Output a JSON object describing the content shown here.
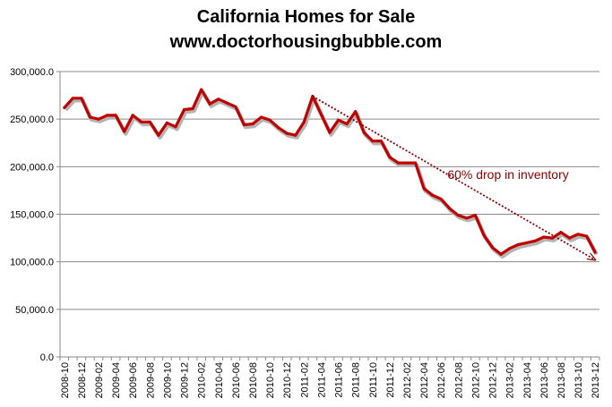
{
  "chart_data": {
    "type": "line",
    "title": "California Homes for Sale",
    "subtitle": "www.doctorhousingbubble.com",
    "xlabel": "",
    "ylabel": "",
    "ylim": [
      0,
      300000
    ],
    "grid": true,
    "yticks": [
      "0.0",
      "50,000.0",
      "100,000.0",
      "150,000.0",
      "200,000.0",
      "250,000.0",
      "300,000.0"
    ],
    "categories": [
      "2008-10",
      "2008-11",
      "2008-12",
      "2009-01",
      "2009-02",
      "2009-03",
      "2009-04",
      "2009-05",
      "2009-06",
      "2009-07",
      "2009-08",
      "2009-09",
      "2009-10",
      "2009-11",
      "2009-12",
      "2010-01",
      "2010-02",
      "2010-03",
      "2010-04",
      "2010-05",
      "2010-06",
      "2010-07",
      "2010-08",
      "2010-09",
      "2010-10",
      "2010-11",
      "2010-12",
      "2011-01",
      "2011-02",
      "2011-03",
      "2011-04",
      "2011-05",
      "2011-06",
      "2011-07",
      "2011-08",
      "2011-09",
      "2011-10",
      "2011-11",
      "2011-12",
      "2012-01",
      "2012-02",
      "2012-03",
      "2012-04",
      "2012-05",
      "2012-06",
      "2012-07",
      "2012-08",
      "2012-09",
      "2012-10",
      "2012-11",
      "2012-12",
      "2013-01",
      "2013-02",
      "2013-03",
      "2013-04",
      "2013-05",
      "2013-06",
      "2013-07",
      "2013-08",
      "2013-09",
      "2013-10",
      "2013-11",
      "2013-12"
    ],
    "xtick_labels": [
      "2008-10",
      "2008-12",
      "2009-02",
      "2009-04",
      "2009-06",
      "2009-08",
      "2009-10",
      "2009-12",
      "2010-02",
      "2010-04",
      "2010-06",
      "2010-08",
      "2010-10",
      "2010-12",
      "2011-02",
      "2011-04",
      "2011-06",
      "2011-08",
      "2011-10",
      "2011-12",
      "2012-02",
      "2012-04",
      "2012-06",
      "2012-08",
      "2012-10",
      "2012-12",
      "2013-02",
      "2013-04",
      "2013-06",
      "2013-08",
      "2013-10",
      "2013-12"
    ],
    "series": [
      {
        "color": "#c00000",
        "values": [
          262000,
          272000,
          272000,
          252000,
          250000,
          254000,
          254000,
          237000,
          254000,
          247000,
          247000,
          233000,
          246000,
          242000,
          260000,
          261000,
          281000,
          266000,
          271000,
          267000,
          263000,
          244000,
          245000,
          252000,
          249000,
          241000,
          235000,
          233000,
          247000,
          274000,
          255000,
          236000,
          249000,
          245000,
          258000,
          236000,
          227000,
          227000,
          210000,
          204000,
          204000,
          204000,
          177000,
          170000,
          166000,
          156000,
          149000,
          146000,
          149000,
          128000,
          115000,
          108000,
          114000,
          118000,
          120000,
          122000,
          126000,
          125000,
          131000,
          125000,
          129000,
          127000,
          110000
        ]
      }
    ],
    "annotation": {
      "text": "60% drop in inventory",
      "color": "#8b0000",
      "arrow_from": {
        "x": "2011-03",
        "y": 274000
      },
      "arrow_to": {
        "x": "2013-12",
        "y": 102000
      }
    }
  }
}
